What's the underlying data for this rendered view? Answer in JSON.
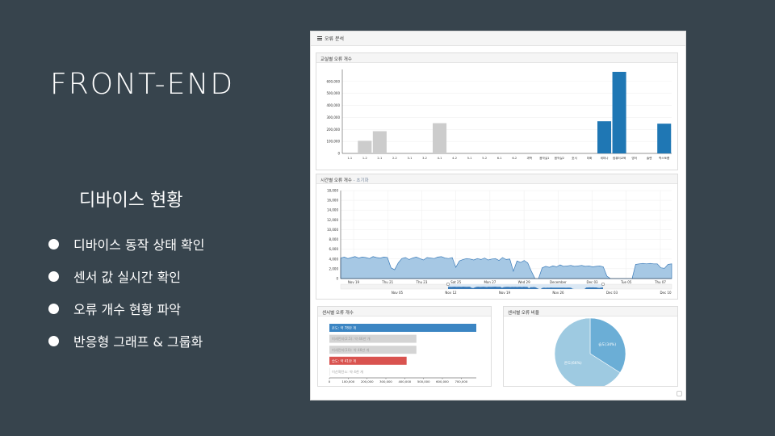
{
  "slide": {
    "title": "FRONT-END",
    "subtitle": "디바이스 현황",
    "bullets": [
      "디바이스 동작 상태 확인",
      "센서 값 실시간 확인",
      "오류 개수 현황 파악",
      "반응형 그래프 & 그룹화"
    ]
  },
  "dashboard": {
    "header": "오류 분석",
    "header_icon": "list-icon",
    "panel1_title": "교실별 오류 개수",
    "panel2_title": "시간별 오류 개수",
    "panel2_subtitle": "- 초기화",
    "panel3_title": "센서별 오류 개수",
    "panel4_title": "센서별 오류 비율"
  },
  "chart_data": [
    {
      "type": "bar",
      "title": "교실별 오류 개수",
      "categories": [
        "1-1",
        "1-2",
        "2-1",
        "2-2",
        "3-1",
        "3-2",
        "4-1",
        "4-2",
        "5-1",
        "5-2",
        "6-1",
        "6-2",
        "과학",
        "음악실1",
        "음악실2",
        "호서",
        "미화",
        "세미나",
        "컴퓨터교육",
        "영어",
        "솔렌",
        "학스토룸"
      ],
      "values": [
        0,
        105000,
        185000,
        0,
        0,
        0,
        252000,
        0,
        0,
        0,
        0,
        0,
        0,
        0,
        0,
        0,
        0,
        268000,
        680000,
        0,
        0,
        248000
      ],
      "colors": [
        "#cccccc",
        "#cccccc",
        "#cccccc",
        "#cccccc",
        "#cccccc",
        "#cccccc",
        "#cccccc",
        "#cccccc",
        "#cccccc",
        "#cccccc",
        "#cccccc",
        "#cccccc",
        "#cccccc",
        "#cccccc",
        "#cccccc",
        "#cccccc",
        "#cccccc",
        "#1f77b4",
        "#1f77b4",
        "#cccccc",
        "#cccccc",
        "#1f77b4"
      ],
      "yticks": [
        "0",
        "100,000",
        "200,000",
        "300,000",
        "400,000",
        "500,000",
        "600,000"
      ],
      "ylim": [
        0,
        700000
      ]
    },
    {
      "type": "area",
      "title": "시간별 오류 개수",
      "yticks": [
        "0",
        "2,000",
        "4,000",
        "6,000",
        "8,000",
        "10,000",
        "12,000",
        "14,000",
        "16,000",
        "18,000"
      ],
      "ylim": [
        0,
        18000
      ],
      "xticks": [
        "Nov 19",
        "Thu 21",
        "Thu 23",
        "Sat 25",
        "Mon 27",
        "Wed 29",
        "December",
        "Dec 03",
        "Tue 05",
        "Thu 07"
      ],
      "brush_ticks": [
        "Nov 05",
        "Nov 12",
        "Nov 19",
        "Nov 26",
        "Dec 03",
        "Dec 10"
      ],
      "values": [
        4200,
        4400,
        4100,
        4300,
        4500,
        4200,
        4400,
        4300,
        4100,
        4500,
        4300,
        4200,
        4400,
        4300,
        2200,
        1800,
        3200,
        4100,
        4300,
        3900,
        4200,
        4400,
        4100,
        3800,
        4300,
        4200,
        4100,
        4400,
        4500,
        4200,
        4100,
        4300,
        2300,
        3600,
        3900,
        4100,
        4000,
        3800,
        4100,
        3900,
        4200,
        3800,
        4000,
        4100,
        3700,
        4300,
        3900,
        4000,
        1500,
        3600,
        3300,
        3700,
        3200,
        1500,
        0,
        0,
        2200,
        2500,
        2300,
        2600,
        2400,
        2800,
        2500,
        2600,
        2700,
        2500,
        2600,
        2700,
        2500,
        2600,
        2400,
        2500,
        2600,
        2400,
        500,
        0,
        0,
        0,
        0,
        0,
        0,
        0,
        2900,
        3000,
        3100,
        3000,
        3100,
        3000,
        3000,
        2200,
        2100,
        2900,
        3000
      ]
    },
    {
      "type": "bar",
      "title": "센서별 오류 개수",
      "categories": [
        "온도: 약 78만 개",
        "미세먼지(2.5): 약 46만 개",
        "미세먼지(10): 약 46만 개",
        "습도: 약 41만 개",
        "이산화탄소: 약 4천 개"
      ],
      "values": [
        780000,
        462000,
        462000,
        410000,
        4000
      ],
      "colors": [
        "#3b85c3",
        "#d4d4d4",
        "#d4d4d4",
        "#d9534f",
        "#ececec"
      ],
      "xticks": [
        "0",
        "100,000",
        "200,000",
        "300,000",
        "400,000",
        "500,000",
        "600,000",
        "700,000"
      ],
      "xlim": [
        0,
        780000
      ]
    },
    {
      "type": "pie",
      "title": "센서별 오류 비율",
      "slices": [
        {
          "label": "습도(34%)",
          "value": 34,
          "color": "#6baed6"
        },
        {
          "label": "온도(66%)",
          "value": 66,
          "color": "#9ecae1"
        }
      ]
    }
  ]
}
